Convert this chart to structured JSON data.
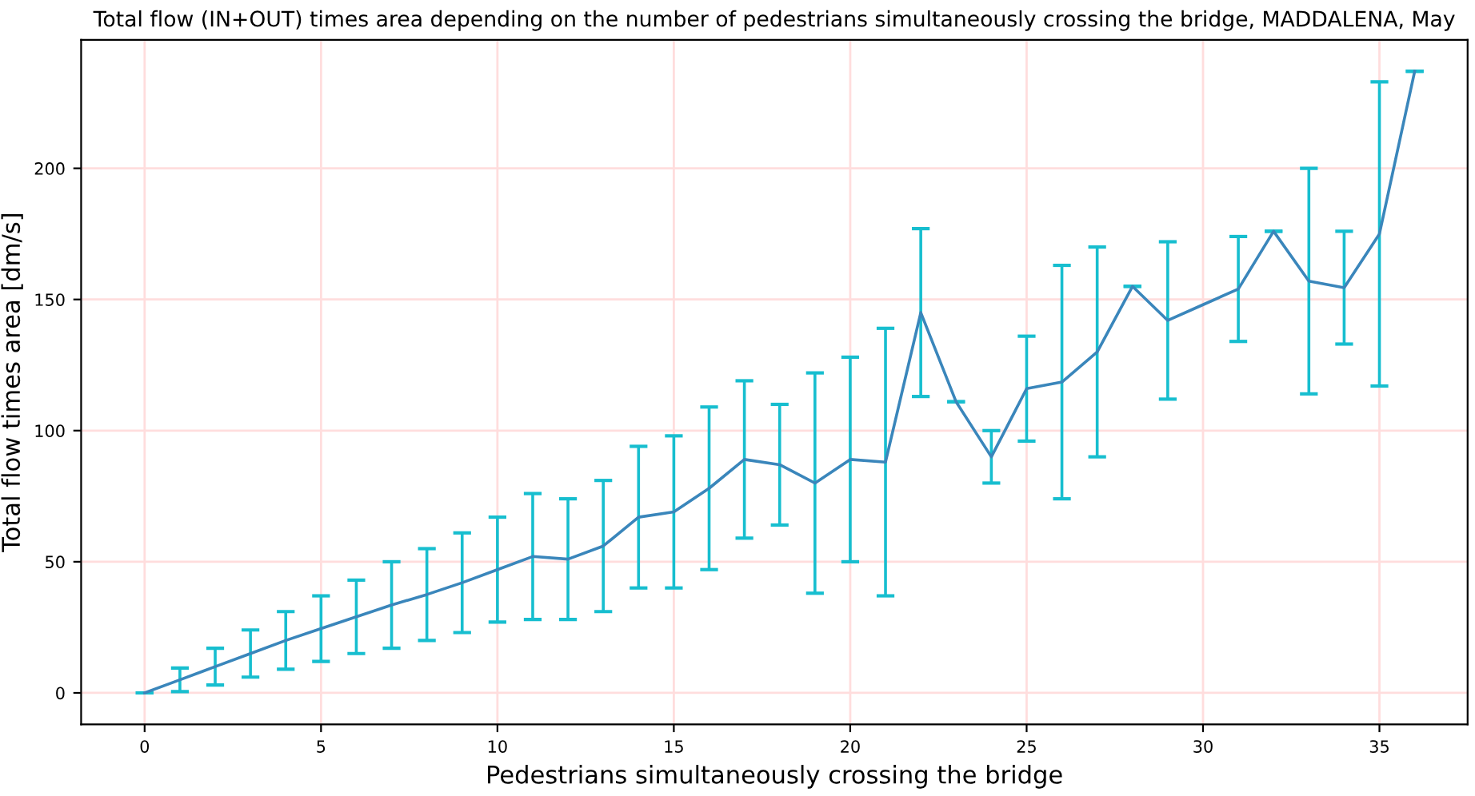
{
  "chart_data": {
    "type": "line",
    "title": "Total flow (IN+OUT) times area depending on the number of pedestrians simultaneously crossing the bridge, MADDALENA, May",
    "xlabel": "Pedestrians simultaneously crossing the bridge",
    "ylabel": "Total flow times area [dm/s]",
    "x": [
      0,
      1,
      2,
      3,
      4,
      5,
      6,
      7,
      8,
      9,
      10,
      11,
      12,
      13,
      14,
      15,
      16,
      17,
      18,
      19,
      20,
      21,
      22,
      23,
      24,
      25,
      26,
      27,
      28,
      29,
      30,
      31,
      32,
      33,
      34,
      35,
      36
    ],
    "series": [
      {
        "color": "#3a86bb",
        "values": [
          0,
          5,
          10,
          15,
          20,
          24.5,
          29,
          33.5,
          37.5,
          42,
          47,
          52,
          51,
          56,
          67,
          69,
          78,
          89,
          87,
          80,
          89,
          88,
          145,
          111,
          90,
          116,
          118.5,
          130,
          155,
          142,
          148,
          154,
          176,
          157,
          154.5,
          175,
          237
        ],
        "errors": [
          0,
          4.5,
          7,
          9,
          11,
          12.5,
          14,
          16.5,
          17.5,
          19,
          20,
          24,
          23,
          25,
          27,
          29,
          31,
          30,
          23,
          42,
          39,
          51,
          32,
          0,
          10,
          20,
          44.5,
          40,
          0,
          30,
          null,
          20,
          0,
          43,
          21.5,
          58,
          0
        ]
      }
    ],
    "xlim": [
      -1.8,
      37.5
    ],
    "ylim": [
      -12,
      249
    ],
    "xticks": [
      0,
      5,
      10,
      15,
      20,
      25,
      30,
      35
    ],
    "yticks": [
      0,
      50,
      100,
      150,
      200
    ],
    "grid": true,
    "marker": "none",
    "line_style": "solid"
  }
}
